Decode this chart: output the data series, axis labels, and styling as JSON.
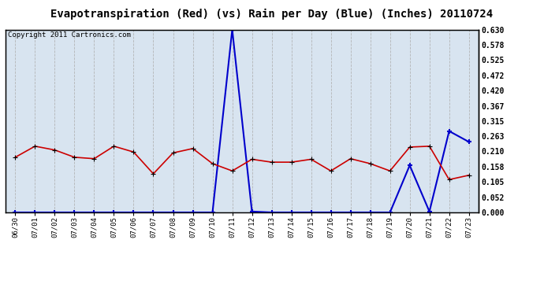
{
  "title": "Evapotranspiration (Red) (vs) Rain per Day (Blue) (Inches) 20110724",
  "copyright": "Copyright 2011 Cartronics.com",
  "x_labels": [
    "06/30",
    "07/01",
    "07/02",
    "07/03",
    "07/04",
    "07/05",
    "07/06",
    "07/07",
    "07/08",
    "07/09",
    "07/10",
    "07/11",
    "07/12",
    "07/13",
    "07/14",
    "07/15",
    "07/16",
    "07/17",
    "07/18",
    "07/19",
    "07/20",
    "07/21",
    "07/22",
    "07/23"
  ],
  "red_values": [
    0.19,
    0.228,
    0.215,
    0.19,
    0.185,
    0.228,
    0.208,
    0.133,
    0.205,
    0.22,
    0.168,
    0.143,
    0.183,
    0.173,
    0.173,
    0.183,
    0.143,
    0.185,
    0.168,
    0.143,
    0.225,
    0.228,
    0.113,
    0.128
  ],
  "blue_values": [
    0.0,
    0.0,
    0.0,
    0.0,
    0.0,
    0.0,
    0.0,
    0.0,
    0.0,
    0.0,
    0.0,
    0.63,
    0.003,
    0.0,
    0.0,
    0.0,
    0.0,
    0.0,
    0.0,
    0.0,
    0.162,
    0.003,
    0.28,
    0.243
  ],
  "ylim": [
    0.0,
    0.63
  ],
  "yticks": [
    0.0,
    0.052,
    0.105,
    0.158,
    0.21,
    0.263,
    0.315,
    0.367,
    0.42,
    0.472,
    0.525,
    0.578,
    0.63
  ],
  "red_color": "#cc0000",
  "blue_color": "#0000cc",
  "bg_color": "#ffffff",
  "plot_bg_color": "#d8e4f0",
  "grid_color": "#b0b0b0",
  "title_fontsize": 10,
  "copyright_fontsize": 6.5
}
